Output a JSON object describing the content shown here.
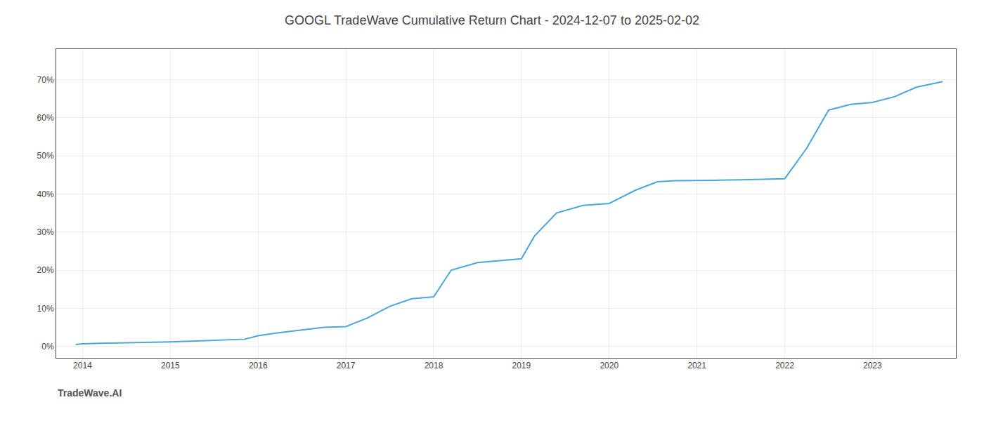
{
  "chart_data": {
    "type": "line",
    "title": "GOOGL TradeWave Cumulative Return Chart - 2024-12-07 to 2025-02-02",
    "annotations": [
      "TradeWave.AI"
    ],
    "x": [
      2013.92,
      2014.0,
      2014.2,
      2014.5,
      2014.75,
      2015.0,
      2015.3,
      2015.6,
      2015.85,
      2016.0,
      2016.2,
      2016.5,
      2016.75,
      2017.0,
      2017.25,
      2017.5,
      2017.75,
      2018.0,
      2018.2,
      2018.5,
      2018.75,
      2019.0,
      2019.15,
      2019.4,
      2019.7,
      2020.0,
      2020.3,
      2020.55,
      2020.75,
      2021.0,
      2021.25,
      2021.5,
      2021.75,
      2022.0,
      2022.25,
      2022.5,
      2022.75,
      2023.0,
      2023.25,
      2023.5,
      2023.8
    ],
    "values": [
      0.5,
      0.7,
      0.8,
      0.9,
      1.0,
      1.2,
      1.4,
      1.6,
      1.9,
      2.8,
      3.5,
      4.3,
      5.0,
      5.2,
      7.5,
      10.5,
      12.5,
      13.0,
      20.0,
      22.0,
      22.5,
      23.0,
      29.0,
      35.0,
      37.0,
      37.5,
      41.0,
      43.2,
      43.5,
      43.5,
      43.6,
      43.7,
      43.8,
      44.0,
      52.0,
      62.0,
      63.5,
      64.0,
      65.5,
      68.0,
      69.5
    ],
    "color": "#4da6d9",
    "xlim": [
      2013.7,
      2023.95
    ],
    "xticks": [
      2014,
      2015,
      2016,
      2017,
      2018,
      2019,
      2020,
      2021,
      2022,
      2023
    ],
    "ylim": [
      -3,
      78
    ],
    "yticks": [
      {
        "value": 0,
        "label": "0%"
      },
      {
        "value": 10,
        "label": "10%"
      },
      {
        "value": 20,
        "label": "20%"
      },
      {
        "value": 30,
        "label": "30%"
      },
      {
        "value": 40,
        "label": "40%"
      },
      {
        "value": 50,
        "label": "50%"
      },
      {
        "value": 60,
        "label": "60%"
      },
      {
        "value": 70,
        "label": "70%"
      }
    ],
    "grid": true
  }
}
